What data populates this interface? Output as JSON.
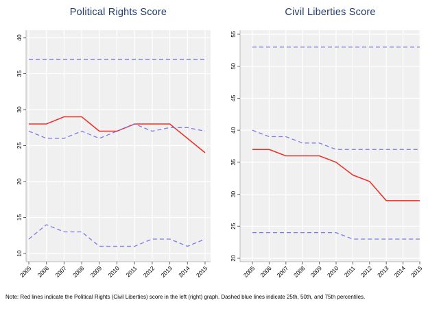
{
  "note": "Note: Red lines indicate the Political Rights (Civil Liberties) score in the left (right) graph. Dashed blue lines indicate 25th, 50th, and 75th percentiles.",
  "colors": {
    "score_line": "#ec322b",
    "percentile_line": "#7373eb",
    "title_text": "#203a68",
    "plot_bg": "#f0f0f0",
    "grid": "#ffffff",
    "axis": "#b8b8b8",
    "tick": "#606060",
    "tick_label": "#000000"
  },
  "chart_data": [
    {
      "type": "line",
      "title": "Political Rights Score",
      "categories": [
        "2005",
        "2006",
        "2007",
        "2008",
        "2009",
        "2010",
        "2011",
        "2012",
        "2013",
        "2014",
        "2015"
      ],
      "ylim": [
        10,
        40
      ],
      "yticks": [
        10,
        15,
        20,
        25,
        30,
        35,
        40
      ],
      "grid": "on",
      "legend": "none",
      "series": [
        {
          "name": "75th percentile",
          "style": "dashed",
          "values": [
            37,
            37,
            37,
            37,
            37,
            37,
            37,
            37,
            37,
            37,
            37
          ]
        },
        {
          "name": "25th percentile",
          "style": "dashed",
          "values": [
            12,
            14,
            13,
            13,
            11,
            11,
            11,
            12,
            12,
            11,
            12
          ]
        },
        {
          "name": "Political Rights score",
          "style": "solid",
          "values": [
            28,
            28,
            29,
            29,
            27,
            27,
            28,
            28,
            28,
            26,
            24
          ]
        },
        {
          "name": "50th percentile",
          "style": "dashed",
          "values": [
            27,
            26,
            26,
            27,
            26,
            27,
            28,
            27,
            27.5,
            27.5,
            27
          ]
        }
      ]
    },
    {
      "type": "line",
      "title": "Civil Liberties Score",
      "categories": [
        "2005",
        "2006",
        "2007",
        "2008",
        "2009",
        "2010",
        "2011",
        "2012",
        "2013",
        "2014",
        "2015"
      ],
      "ylim": [
        20,
        55
      ],
      "yticks": [
        20,
        25,
        30,
        35,
        40,
        45,
        50,
        55
      ],
      "grid": "on",
      "legend": "none",
      "series": [
        {
          "name": "75th percentile",
          "style": "dashed",
          "values": [
            53,
            53,
            53,
            53,
            53,
            53,
            53,
            53,
            53,
            53,
            53
          ]
        },
        {
          "name": "25th percentile",
          "style": "dashed",
          "values": [
            24,
            24,
            24,
            24,
            24,
            24,
            23,
            23,
            23,
            23,
            23
          ]
        },
        {
          "name": "Civil Liberties score",
          "style": "solid",
          "values": [
            37,
            37,
            36,
            36,
            36,
            35,
            33,
            32,
            29,
            29,
            29
          ]
        },
        {
          "name": "50th percentile",
          "style": "dashed",
          "values": [
            40,
            39,
            39,
            38,
            38,
            37,
            37,
            37,
            37,
            37,
            37
          ]
        }
      ]
    }
  ]
}
